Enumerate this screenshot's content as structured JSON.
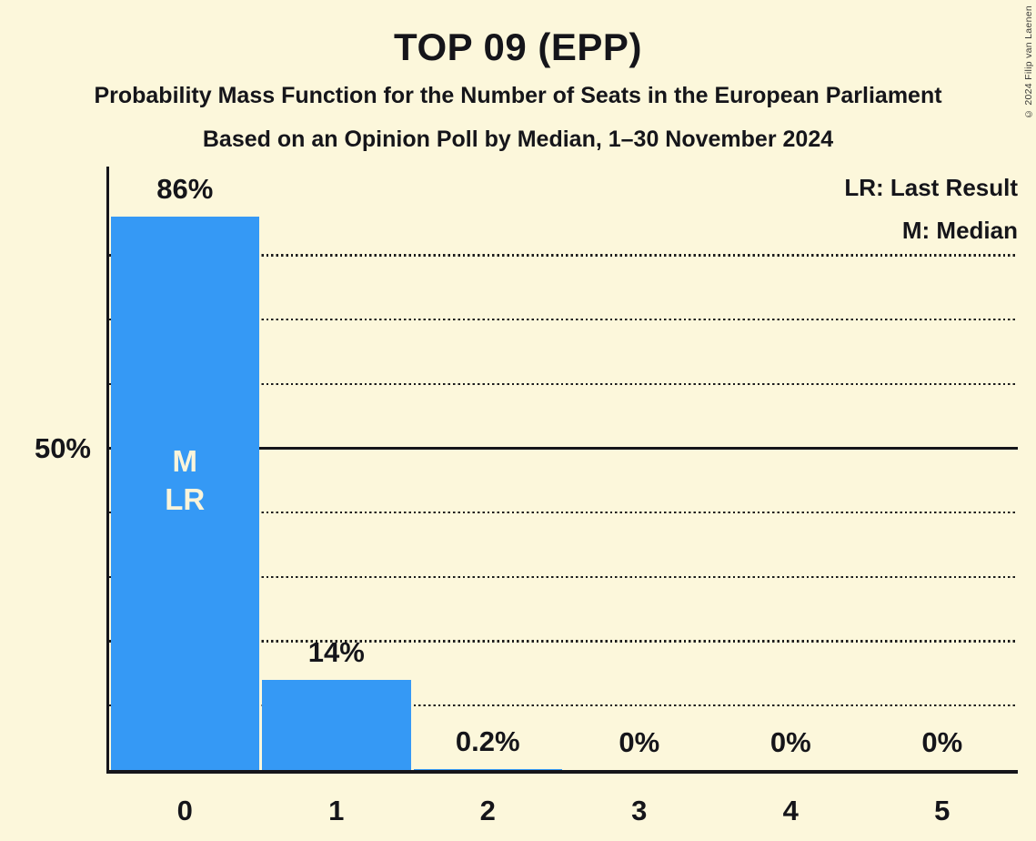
{
  "title": "TOP 09 (EPP)",
  "subtitle_line1": "Probability Mass Function for the Number of Seats in the European Parliament",
  "subtitle_line2": "Based on an Opinion Poll by Median, 1–30 November 2024",
  "copyright_notice": "© 2024 Filip van Laenen",
  "legend": {
    "last_result": "LR: Last Result",
    "median": "M: Median"
  },
  "y_axis_label": "50%",
  "colors": {
    "background": "#FCF7DB",
    "bar": "#3599F5",
    "text": "#15151A",
    "bar_annotation_text": "#FAF4DA",
    "gridline": "#1C1C1C"
  },
  "chart_data": {
    "type": "bar",
    "categories": [
      "0",
      "1",
      "2",
      "3",
      "4",
      "5"
    ],
    "values": [
      86,
      14,
      0.2,
      0,
      0,
      0
    ],
    "value_labels": [
      "86%",
      "14%",
      "0.2%",
      "0%",
      "0%",
      "0%"
    ],
    "title": "TOP 09 (EPP)",
    "xlabel": "",
    "ylabel": "",
    "ylim": [
      0,
      94
    ],
    "y_tick_labels": [
      "50%"
    ],
    "grid": "dotted horizontal lines every 10%, solid line at 50%",
    "y_gridlines_dotted_pct": [
      10,
      20,
      30,
      40,
      60,
      70,
      80
    ],
    "y_line_solid_pct": 50,
    "legend_position": "top-right",
    "bar_annotations": [
      [
        "M",
        "LR"
      ],
      [],
      [],
      [],
      [],
      []
    ]
  }
}
